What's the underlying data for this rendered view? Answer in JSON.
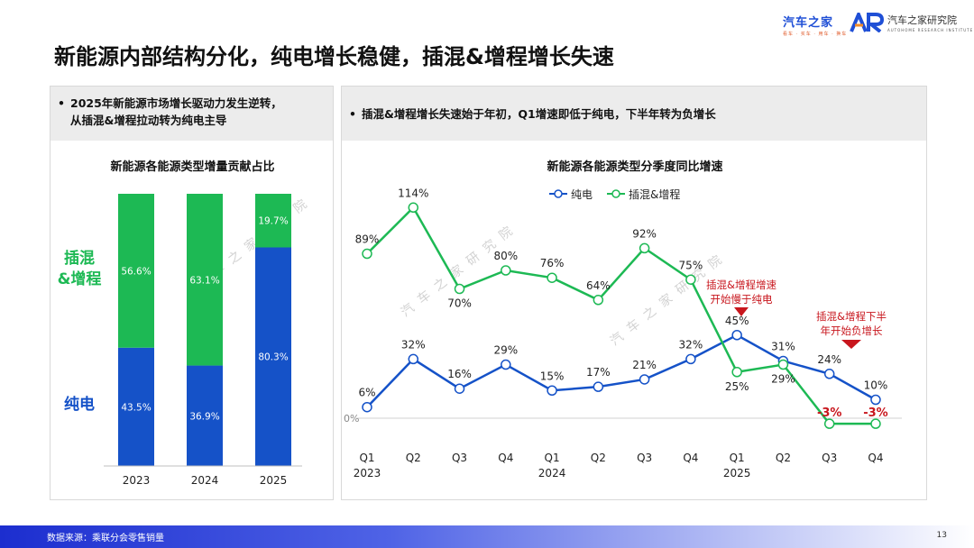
{
  "header": {
    "logo1_text": "汽车之家",
    "logo1_sub": "看车 · 买车 · 用车 · 换车",
    "logo2_text": "汽车之家研究院",
    "logo2_sub": "AUTOHOME RESEARCH INSTITUTE",
    "title": "新能源内部结构分化，纯电增长稳健，插混&增程增长失速"
  },
  "left_panel": {
    "bullet": "2025年新能源市场增长驱动力发生逆转，从插混&增程拉动转为纯电主导",
    "bullet_line1": "2025年新能源市场增长驱动力发生逆转，",
    "bullet_line2": "从插混&增程拉动转为纯电主导"
  },
  "right_panel": {
    "bullet": "插混&增程增长失速始于年初，Q1增速即低于纯电，下半年转为负增长"
  },
  "watermark": "汽车之家研究院",
  "footer": {
    "source": "数据来源：乘联分会零售销量",
    "page": "13"
  },
  "colors": {
    "bev": "#1552c8",
    "phev": "#1db954",
    "annotation": "#c8161d",
    "panel_head": "#ececec"
  },
  "chart_data": [
    {
      "type": "bar",
      "stacked": true,
      "title": "新能源各能源类型增量贡献占比",
      "categories": [
        "2023",
        "2024",
        "2025"
      ],
      "series": [
        {
          "name": "纯电",
          "values": [
            43.5,
            36.9,
            80.3
          ],
          "labels": [
            "43.5%",
            "36.9%",
            "80.3%"
          ]
        },
        {
          "name": "插混&增程",
          "values": [
            56.6,
            63.1,
            19.7
          ],
          "labels": [
            "56.6%",
            "63.1%",
            "19.7%"
          ]
        }
      ],
      "series_labels": {
        "phev_line1": "插混",
        "phev_line2": "&增程",
        "bev": "纯电"
      },
      "ylim": [
        0,
        100
      ]
    },
    {
      "type": "line",
      "title": "新能源各能源类型分季度同比增速",
      "categories": [
        "Q1",
        "Q2",
        "Q3",
        "Q4",
        "Q1",
        "Q2",
        "Q3",
        "Q4",
        "Q1",
        "Q2",
        "Q3",
        "Q4"
      ],
      "years": [
        "2023",
        "2024",
        "2025"
      ],
      "series": [
        {
          "name": "纯电",
          "values": [
            6,
            32,
            16,
            29,
            15,
            17,
            21,
            32,
            45,
            31,
            24,
            10
          ],
          "labels": [
            "6%",
            "32%",
            "16%",
            "29%",
            "15%",
            "17%",
            "21%",
            "32%",
            "45%",
            "31%",
            "24%",
            "10%"
          ]
        },
        {
          "name": "插混&增程",
          "values": [
            89,
            114,
            70,
            80,
            76,
            64,
            92,
            75,
            25,
            29,
            -3,
            -3
          ],
          "labels": [
            "89%",
            "114%",
            "70%",
            "80%",
            "76%",
            "64%",
            "92%",
            "75%",
            "25%",
            "29%",
            "-3%",
            "-3%"
          ]
        }
      ],
      "zero_label": "0%",
      "annotations": [
        {
          "line1": "插混&增程增速",
          "line2": "开始慢于纯电"
        },
        {
          "line1": "插混&增程下半",
          "line2": "年开始负增长"
        }
      ],
      "ylim": [
        -5,
        120
      ]
    }
  ]
}
